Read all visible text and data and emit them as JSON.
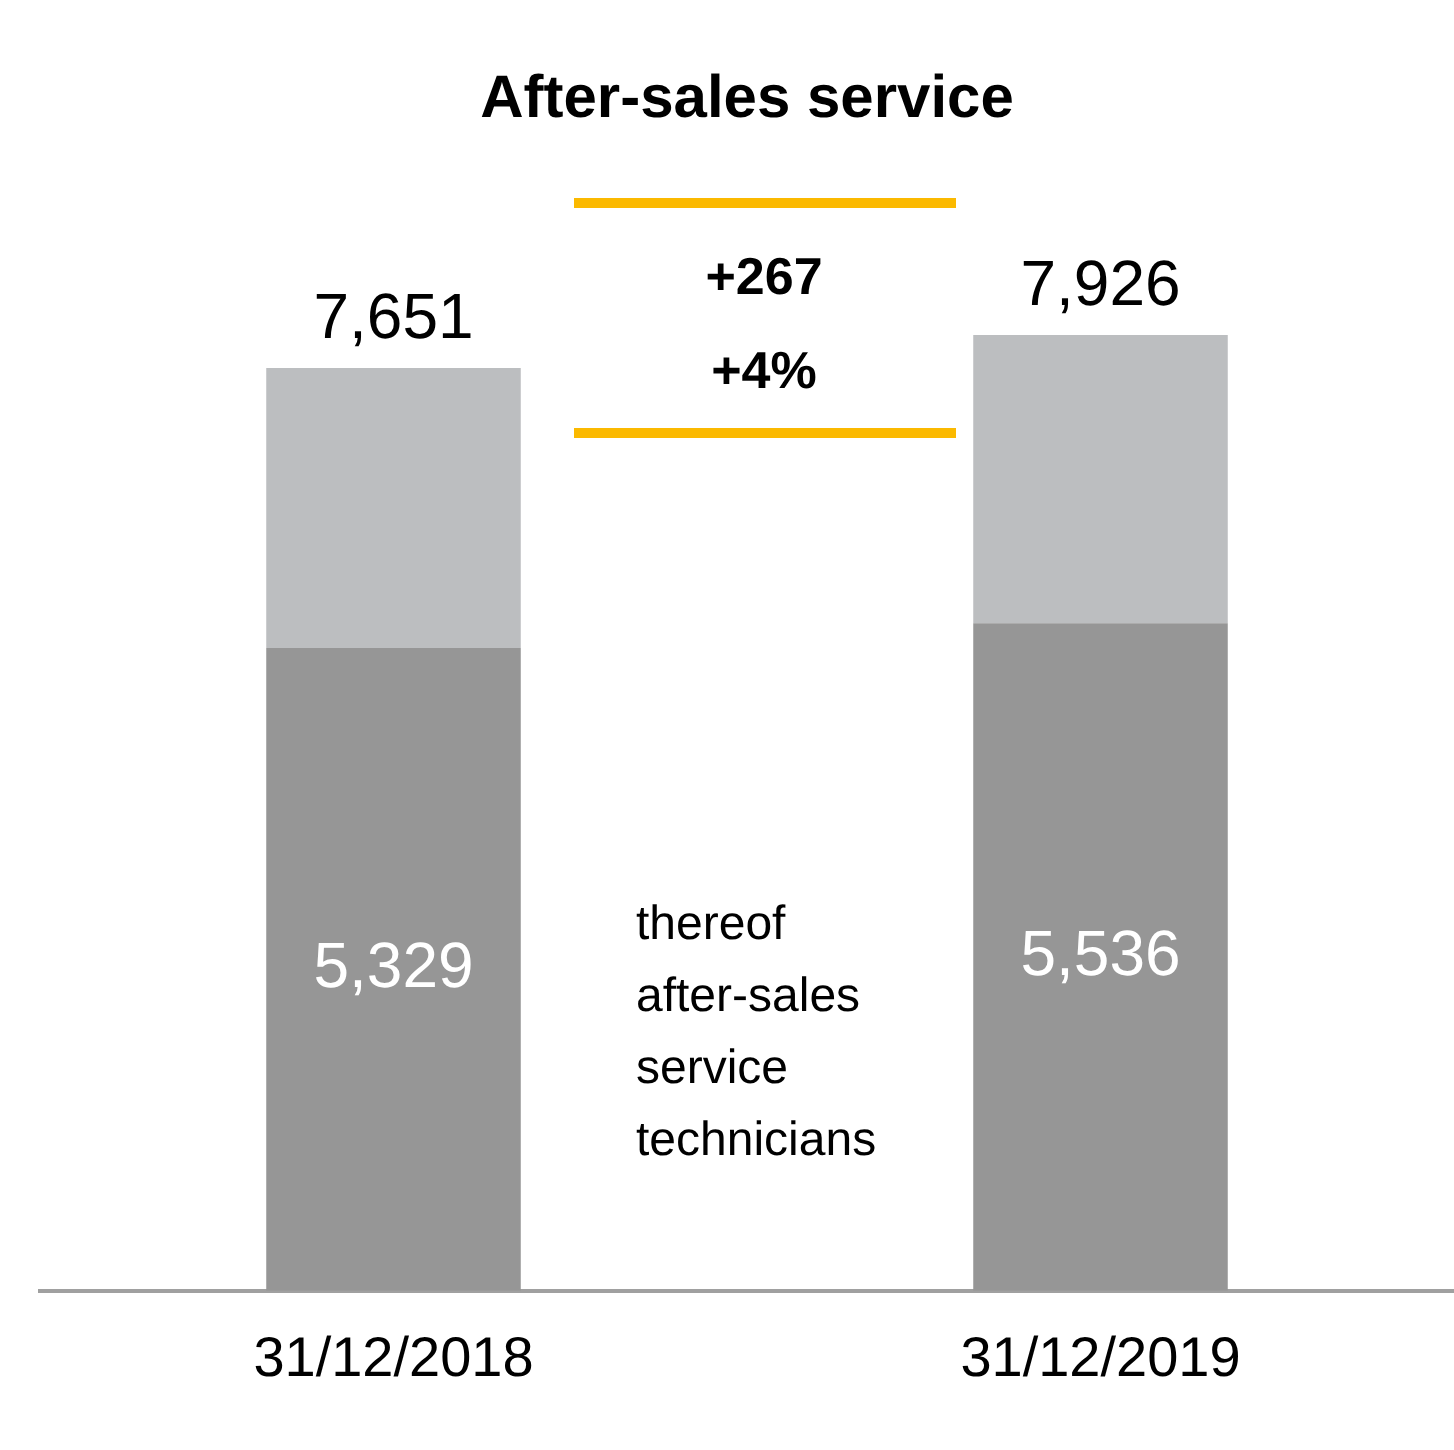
{
  "chart_data": {
    "type": "bar",
    "title": "After-sales service",
    "categories": [
      "31/12/2018",
      "31/12/2019"
    ],
    "stacked": true,
    "legend": false,
    "grid": false,
    "series": [
      {
        "color": "#969696",
        "values": [
          5329,
          5536
        ],
        "value_labels": [
          "5,329",
          "5,536"
        ]
      },
      {
        "color": "#bcbec0",
        "values": [
          2322,
          2390
        ]
      }
    ],
    "totals": [
      "7,651",
      "7,926"
    ],
    "annotations": [
      "+267",
      "+4%",
      "thereof after-sales service technicians"
    ]
  }
}
